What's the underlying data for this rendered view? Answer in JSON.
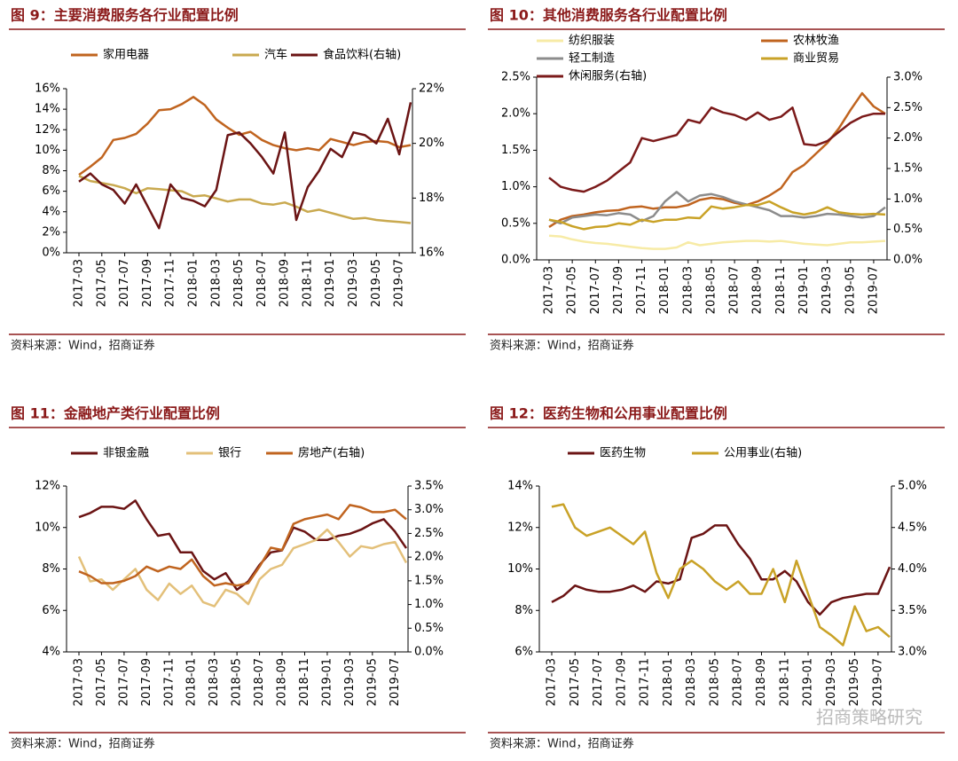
{
  "chart_data": [
    {
      "type": "line",
      "title": "图 9：主要消费服务各行业配置比例",
      "source": "资料来源：Wind，招商证券",
      "categories": [
        "2017-03",
        null,
        "2017-05",
        null,
        "2017-07",
        null,
        "2017-09",
        null,
        "2017-11",
        null,
        "2018-01",
        null,
        "2018-03",
        null,
        "2018-05",
        null,
        "2018-07",
        null,
        "2018-09",
        null,
        "2018-11",
        null,
        "2019-01",
        null,
        "2019-03",
        null,
        "2019-05",
        null,
        "2019-07",
        null
      ],
      "series": [
        {
          "name": "家用电器",
          "color": "#c0641f",
          "values": [
            7.6,
            8.4,
            9.3,
            11.0,
            11.2,
            11.6,
            12.6,
            13.9,
            14.0,
            14.5,
            15.2,
            14.4,
            13.0,
            12.2,
            11.5,
            11.8,
            11.0,
            10.5,
            10.2,
            10.0,
            10.2,
            10.0,
            11.1,
            10.8,
            10.5,
            10.8,
            10.9,
            10.8,
            10.3,
            10.5
          ]
        },
        {
          "name": "汽车",
          "color": "#c9a94f",
          "values": [
            7.5,
            7.0,
            6.8,
            6.6,
            6.3,
            5.8,
            6.3,
            6.2,
            6.1,
            6.0,
            5.5,
            5.6,
            5.3,
            5.0,
            5.2,
            5.2,
            4.8,
            4.7,
            4.9,
            4.5,
            4.0,
            4.2,
            3.9,
            3.6,
            3.3,
            3.4,
            3.2,
            3.1,
            3.0,
            2.9
          ]
        },
        {
          "name": "食品饮料(右轴)",
          "color": "#6b1414",
          "axis": "y2",
          "values": [
            18.6,
            18.9,
            18.5,
            18.3,
            17.8,
            18.5,
            17.7,
            16.9,
            18.5,
            18.0,
            17.9,
            17.7,
            18.3,
            20.3,
            20.4,
            20.0,
            19.5,
            18.9,
            20.4,
            17.2,
            18.4,
            19.0,
            19.8,
            19.5,
            20.4,
            20.3,
            20.0,
            20.9,
            19.6,
            21.5
          ]
        }
      ],
      "ylim": [
        0,
        16
      ],
      "yticks": [
        {
          "value": 0,
          "label": "0%"
        },
        {
          "value": 2,
          "label": "2%"
        },
        {
          "value": 4,
          "label": "4%"
        },
        {
          "value": 6,
          "label": "6%"
        },
        {
          "value": 8,
          "label": "8%"
        },
        {
          "value": 10,
          "label": "10%"
        },
        {
          "value": 12,
          "label": "12%"
        },
        {
          "value": 14,
          "label": "14%"
        },
        {
          "value": 16,
          "label": "16%"
        }
      ],
      "y2lim": [
        16,
        22
      ],
      "y2ticks": [
        {
          "value": 16,
          "label": "16%"
        },
        {
          "value": 18,
          "label": "18%"
        },
        {
          "value": 20,
          "label": "20%"
        },
        {
          "value": 22,
          "label": "22%"
        }
      ]
    },
    {
      "type": "line",
      "title": "图 10：其他消费服务各行业配置比例",
      "source": "资料来源：Wind，招商证券",
      "categories": [
        "2017-03",
        null,
        "2017-05",
        null,
        "2017-07",
        null,
        "2017-09",
        null,
        "2017-11",
        null,
        "2018-01",
        null,
        "2018-03",
        null,
        "2018-05",
        null,
        "2018-07",
        null,
        "2018-09",
        null,
        "2018-11",
        null,
        "2019-01",
        null,
        "2019-03",
        null,
        "2019-05",
        null,
        "2019-07",
        null
      ],
      "series": [
        {
          "name": "纺织服装",
          "color": "#f7eba6",
          "values": [
            0.33,
            0.32,
            0.28,
            0.25,
            0.23,
            0.22,
            0.2,
            0.18,
            0.16,
            0.15,
            0.15,
            0.17,
            0.24,
            0.2,
            0.22,
            0.24,
            0.25,
            0.26,
            0.26,
            0.25,
            0.26,
            0.24,
            0.22,
            0.21,
            0.2,
            0.22,
            0.24,
            0.24,
            0.25,
            0.26
          ]
        },
        {
          "name": "农林牧渔",
          "color": "#c0641f",
          "values": [
            0.45,
            0.55,
            0.6,
            0.62,
            0.65,
            0.67,
            0.68,
            0.72,
            0.73,
            0.7,
            0.72,
            0.72,
            0.75,
            0.82,
            0.85,
            0.83,
            0.78,
            0.75,
            0.8,
            0.88,
            0.98,
            1.2,
            1.3,
            1.45,
            1.6,
            1.8,
            2.05,
            2.28,
            2.1,
            2.0
          ]
        },
        {
          "name": "轻工制造",
          "color": "#8c8c8c",
          "values": [
            0.55,
            0.5,
            0.58,
            0.6,
            0.62,
            0.61,
            0.64,
            0.62,
            0.53,
            0.6,
            0.8,
            0.93,
            0.8,
            0.88,
            0.9,
            0.86,
            0.8,
            0.76,
            0.72,
            0.68,
            0.6,
            0.6,
            0.58,
            0.6,
            0.63,
            0.62,
            0.6,
            0.58,
            0.6,
            0.72
          ]
        },
        {
          "name": "商业贸易",
          "color": "#c9a227",
          "values": [
            0.55,
            0.52,
            0.46,
            0.42,
            0.45,
            0.46,
            0.5,
            0.48,
            0.55,
            0.52,
            0.55,
            0.55,
            0.58,
            0.57,
            0.73,
            0.7,
            0.72,
            0.75,
            0.75,
            0.8,
            0.72,
            0.65,
            0.62,
            0.65,
            0.72,
            0.65,
            0.63,
            0.62,
            0.63,
            0.62
          ]
        },
        {
          "name": "休闲服务(右轴)",
          "color": "#7b1a1a",
          "axis": "y2",
          "values": [
            1.35,
            1.2,
            1.15,
            1.12,
            1.2,
            1.3,
            1.45,
            1.6,
            2.0,
            1.95,
            2.0,
            2.05,
            2.3,
            2.25,
            2.5,
            2.42,
            2.38,
            2.3,
            2.42,
            2.3,
            2.35,
            2.5,
            1.9,
            1.88,
            1.95,
            2.1,
            2.25,
            2.35,
            2.4,
            2.4
          ]
        }
      ],
      "ylim": [
        0,
        2.5
      ],
      "yticks": [
        {
          "value": 0,
          "label": "0.0%"
        },
        {
          "value": 0.5,
          "label": "0.5%"
        },
        {
          "value": 1,
          "label": "1.0%"
        },
        {
          "value": 1.5,
          "label": "1.5%"
        },
        {
          "value": 2,
          "label": "2.0%"
        },
        {
          "value": 2.5,
          "label": "2.5%"
        }
      ],
      "y2lim": [
        0,
        3
      ],
      "y2ticks": [
        {
          "value": 0,
          "label": "0.0%"
        },
        {
          "value": 0.5,
          "label": "0.5%"
        },
        {
          "value": 1,
          "label": "1.0%"
        },
        {
          "value": 1.5,
          "label": "1.5%"
        },
        {
          "value": 2,
          "label": "2.0%"
        },
        {
          "value": 2.5,
          "label": "2.5%"
        },
        {
          "value": 3,
          "label": "3.0%"
        }
      ]
    },
    {
      "type": "line",
      "title": "图 11：金融地产类行业配置比例",
      "source": "资料来源：Wind，招商证券",
      "categories": [
        "2017-03",
        null,
        "2017-05",
        null,
        "2017-07",
        null,
        "2017-09",
        null,
        "2017-11",
        null,
        "2018-01",
        null,
        "2018-03",
        null,
        "2018-05",
        null,
        "2018-07",
        null,
        "2018-09",
        null,
        "2018-11",
        null,
        "2019-01",
        null,
        "2019-03",
        null,
        "2019-05",
        null,
        "2019-07",
        null
      ],
      "series": [
        {
          "name": "非银金融",
          "color": "#6b1414",
          "values": [
            10.5,
            10.7,
            11.0,
            11.0,
            10.9,
            11.3,
            10.4,
            9.6,
            9.7,
            8.8,
            8.8,
            7.9,
            7.5,
            7.8,
            7.0,
            7.4,
            8.2,
            8.8,
            8.9,
            10.0,
            9.8,
            9.4,
            9.4,
            9.6,
            9.7,
            9.9,
            10.2,
            10.4,
            9.8,
            9.0
          ]
        },
        {
          "name": "银行",
          "color": "#e3c07a",
          "values": [
            8.6,
            7.4,
            7.5,
            7.0,
            7.5,
            8.0,
            7.0,
            6.5,
            7.3,
            6.8,
            7.2,
            6.4,
            6.2,
            7.0,
            6.8,
            6.3,
            7.5,
            8.0,
            8.2,
            9.0,
            9.2,
            9.4,
            9.9,
            9.3,
            8.6,
            9.1,
            9.0,
            9.2,
            9.3,
            8.3
          ]
        },
        {
          "name": "房地产(右轴)",
          "color": "#c0641f",
          "axis": "y2",
          "values": [
            1.7,
            1.6,
            1.45,
            1.45,
            1.5,
            1.6,
            1.8,
            1.7,
            1.8,
            1.75,
            1.95,
            1.6,
            1.4,
            1.45,
            1.4,
            1.45,
            1.8,
            2.2,
            2.15,
            2.7,
            2.8,
            2.85,
            2.9,
            2.8,
            3.1,
            3.05,
            2.95,
            2.95,
            3.0,
            2.8
          ]
        }
      ],
      "ylim": [
        4,
        12
      ],
      "yticks": [
        {
          "value": 4,
          "label": "4%"
        },
        {
          "value": 6,
          "label": "6%"
        },
        {
          "value": 8,
          "label": "8%"
        },
        {
          "value": 10,
          "label": "10%"
        },
        {
          "value": 12,
          "label": "12%"
        }
      ],
      "y2lim": [
        0,
        3.5
      ],
      "y2ticks": [
        {
          "value": 0,
          "label": "0.0%"
        },
        {
          "value": 0.5,
          "label": "0.5%"
        },
        {
          "value": 1,
          "label": "1.0%"
        },
        {
          "value": 1.5,
          "label": "1.5%"
        },
        {
          "value": 2,
          "label": "2.0%"
        },
        {
          "value": 2.5,
          "label": "2.5%"
        },
        {
          "value": 3,
          "label": "3.0%"
        },
        {
          "value": 3.5,
          "label": "3.5%"
        }
      ]
    },
    {
      "type": "line",
      "title": "图 12：医药生物和公用事业配置比例",
      "source": "资料来源：Wind，招商证券",
      "categories": [
        "2017-03",
        null,
        "2017-05",
        null,
        "2017-07",
        null,
        "2017-09",
        null,
        "2017-11",
        null,
        "2018-01",
        null,
        "2018-03",
        null,
        "2018-05",
        null,
        "2018-07",
        null,
        "2018-09",
        null,
        "2018-11",
        null,
        "2019-01",
        null,
        "2019-03",
        null,
        "2019-05",
        null,
        "2019-07",
        null
      ],
      "series": [
        {
          "name": "医药生物",
          "color": "#6b1414",
          "values": [
            8.4,
            8.7,
            9.2,
            9.0,
            8.9,
            8.9,
            9.0,
            9.2,
            8.9,
            9.4,
            9.3,
            9.5,
            11.5,
            11.7,
            12.1,
            12.1,
            11.2,
            10.5,
            9.5,
            9.5,
            9.9,
            9.4,
            8.4,
            7.8,
            8.4,
            8.6,
            8.7,
            8.8,
            8.8,
            10.1
          ]
        },
        {
          "name": "公用事业(右轴)",
          "color": "#c9a227",
          "axis": "y2",
          "values": [
            4.75,
            4.78,
            4.5,
            4.4,
            4.45,
            4.5,
            4.4,
            4.3,
            4.45,
            3.95,
            3.65,
            4.0,
            4.1,
            4.0,
            3.85,
            3.75,
            3.85,
            3.7,
            3.7,
            4.0,
            3.6,
            4.1,
            3.7,
            3.3,
            3.2,
            3.08,
            3.55,
            3.25,
            3.3,
            3.18
          ]
        }
      ],
      "ylim": [
        6,
        14
      ],
      "yticks": [
        {
          "value": 6,
          "label": "6%"
        },
        {
          "value": 8,
          "label": "8%"
        },
        {
          "value": 10,
          "label": "10%"
        },
        {
          "value": 12,
          "label": "12%"
        },
        {
          "value": 14,
          "label": "14%"
        }
      ],
      "y2lim": [
        3,
        5
      ],
      "y2ticks": [
        {
          "value": 3,
          "label": "3.0%"
        },
        {
          "value": 3.5,
          "label": "3.5%"
        },
        {
          "value": 4,
          "label": "4.0%"
        },
        {
          "value": 4.5,
          "label": "4.5%"
        },
        {
          "value": 5,
          "label": "5.0%"
        }
      ]
    }
  ],
  "watermark": "招商策略研究"
}
